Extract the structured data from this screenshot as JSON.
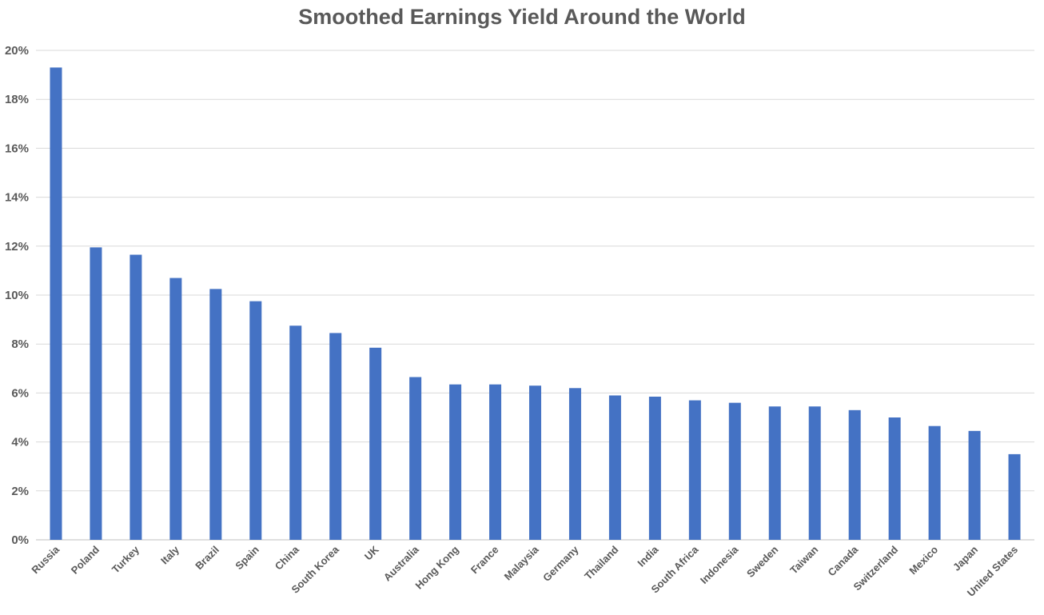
{
  "chart_data": {
    "type": "bar",
    "title": "Smoothed Earnings Yield Around the World",
    "xlabel": "",
    "ylabel": "",
    "ylim": [
      0,
      20
    ],
    "y_ticks": [
      "0%",
      "2%",
      "4%",
      "6%",
      "8%",
      "10%",
      "12%",
      "14%",
      "16%",
      "18%",
      "20%"
    ],
    "y_tick_values": [
      0,
      2,
      4,
      6,
      8,
      10,
      12,
      14,
      16,
      18,
      20
    ],
    "grid": true,
    "legend": "none",
    "bar_color": "#4472C4",
    "categories": [
      "Russia",
      "Poland",
      "Turkey",
      "Italy",
      "Brazil",
      "Spain",
      "China",
      "South Korea",
      "UK",
      "Australia",
      "Hong Kong",
      "France",
      "Malaysia",
      "Germany",
      "Thailand",
      "India",
      "South Africa",
      "Indonesia",
      "Sweden",
      "Taiwan",
      "Canada",
      "Switzerland",
      "Mexico",
      "Japan",
      "United States"
    ],
    "values": [
      19.3,
      11.95,
      11.65,
      10.7,
      10.25,
      9.75,
      8.75,
      8.45,
      7.85,
      6.65,
      6.35,
      6.35,
      6.3,
      6.2,
      5.9,
      5.85,
      5.7,
      5.6,
      5.45,
      5.45,
      5.3,
      5.0,
      4.65,
      4.45,
      3.5
    ]
  }
}
